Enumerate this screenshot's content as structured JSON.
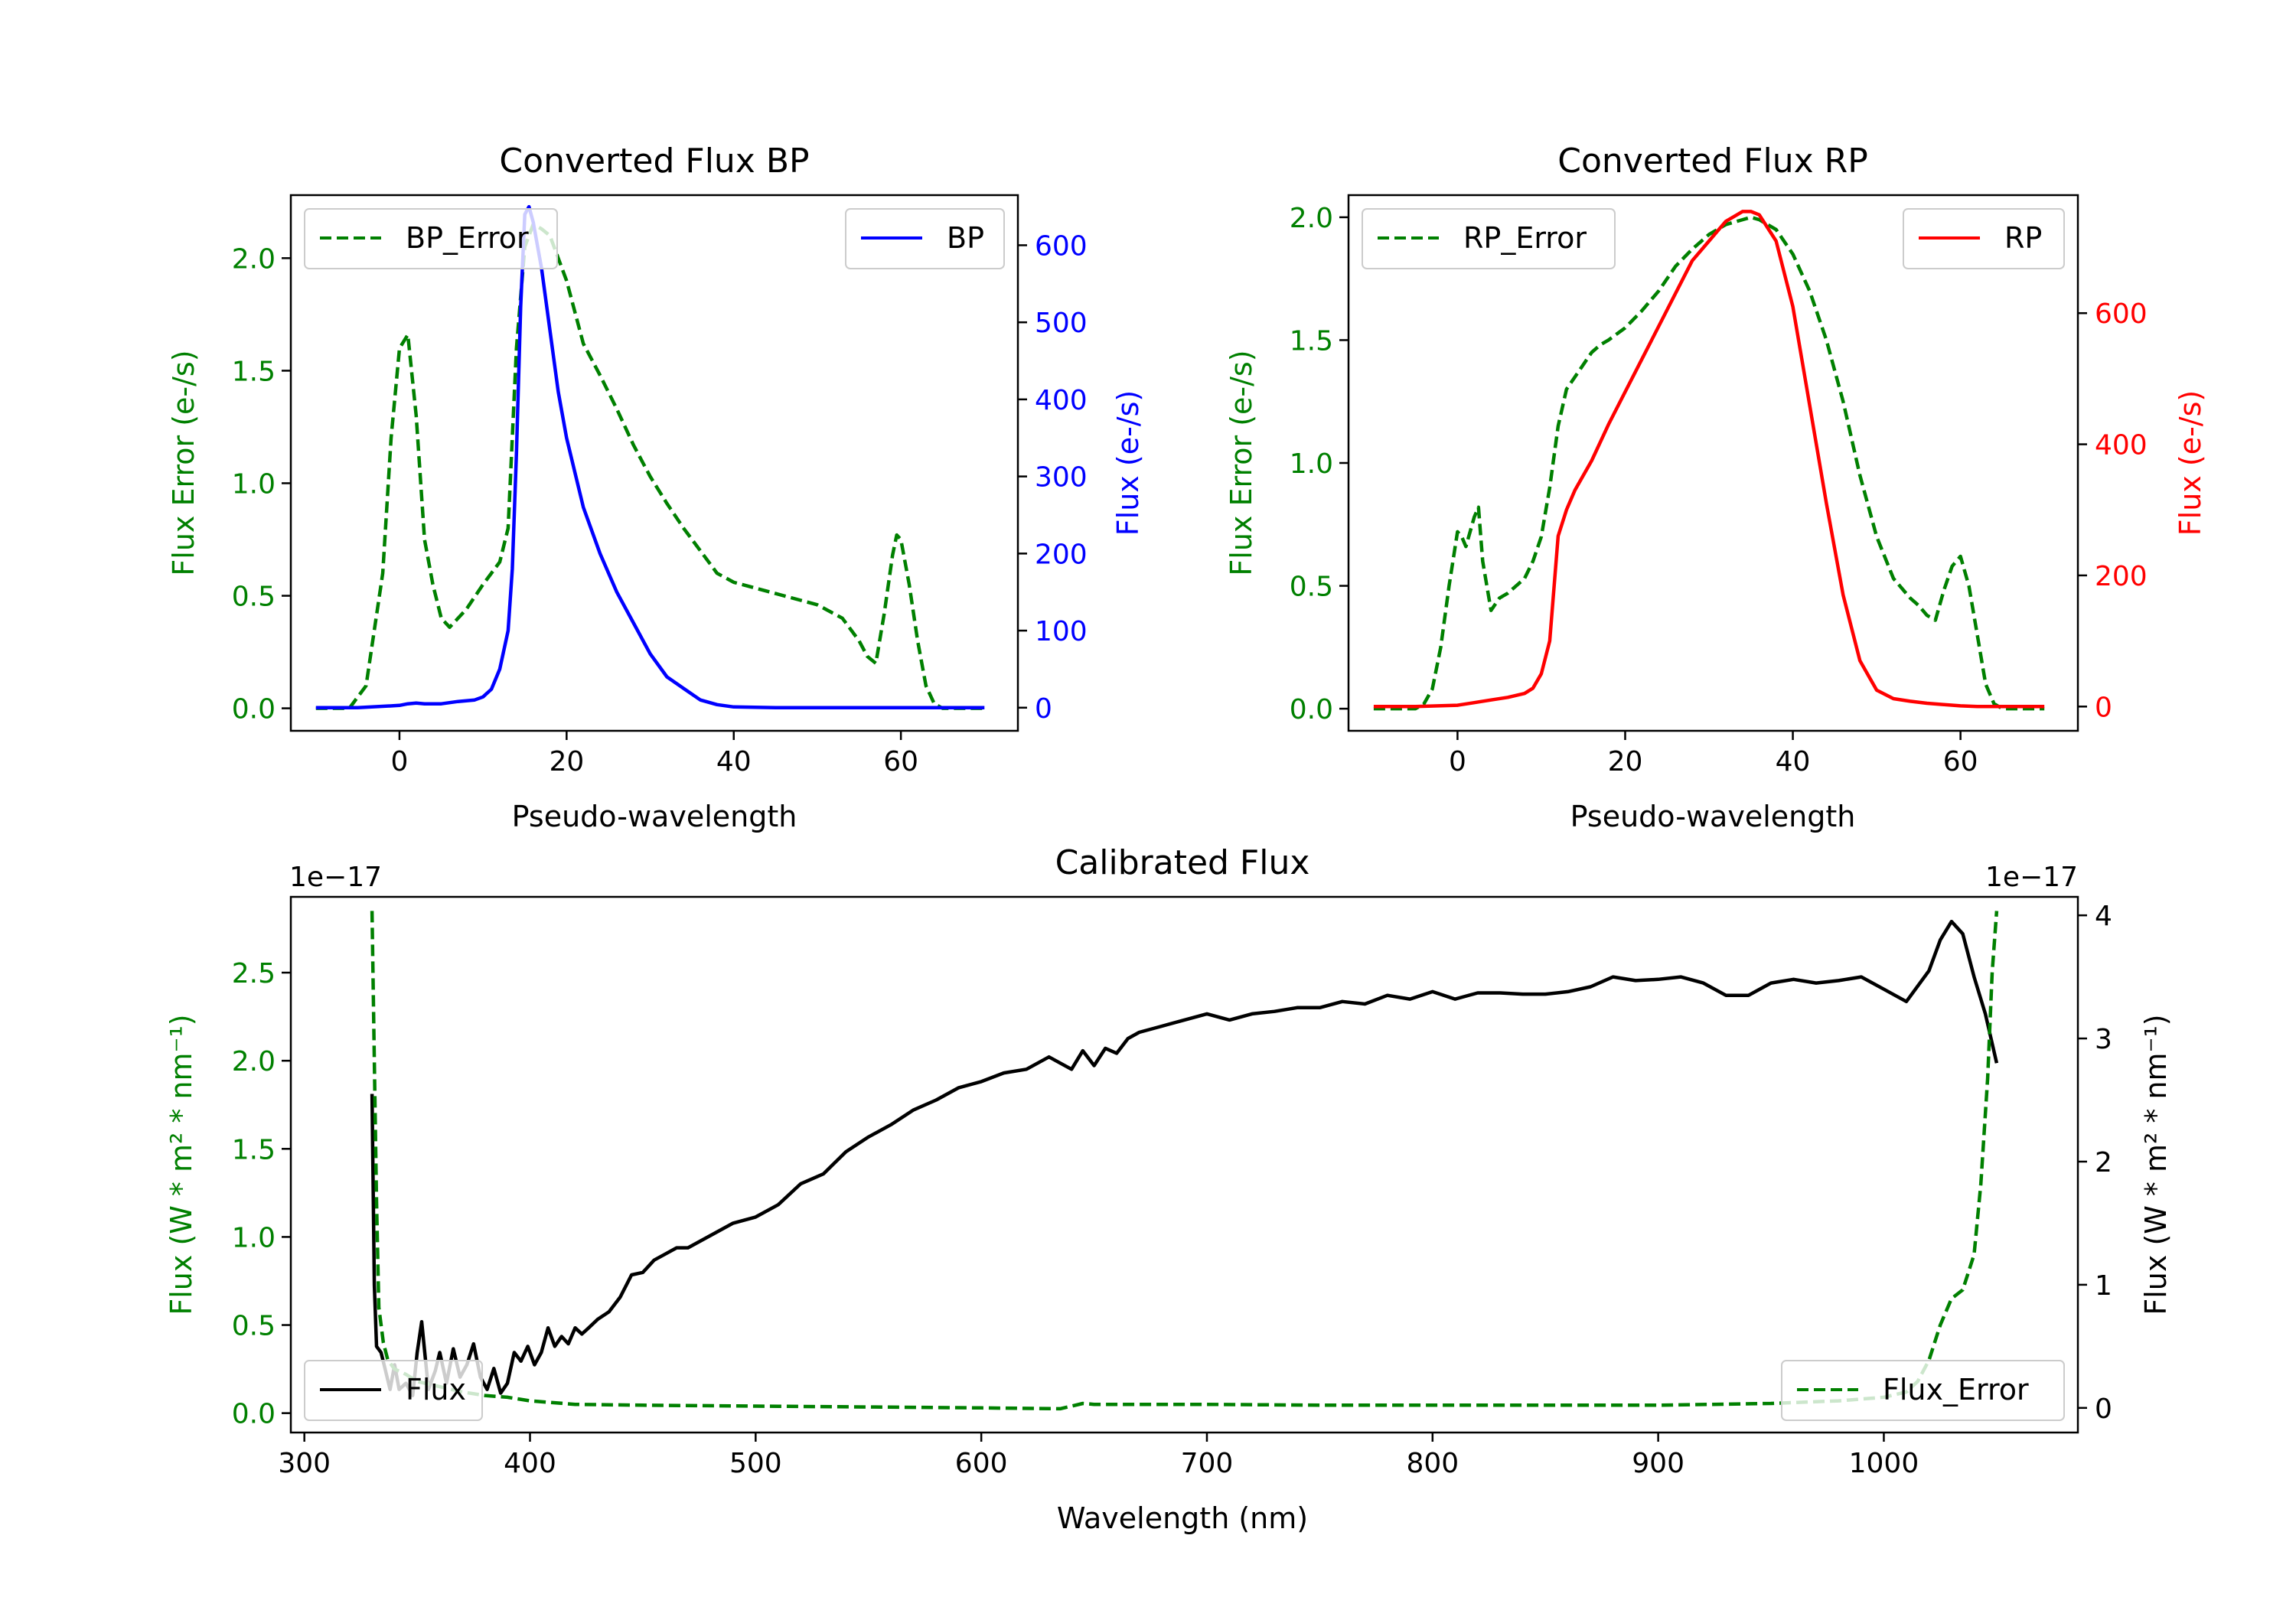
{
  "chart_data": [
    {
      "id": "bp",
      "type": "line",
      "title": "Converted Flux BP",
      "xlabel": "Pseudo-wavelength",
      "xlim": [
        -13,
        74
      ],
      "xticks": [
        0,
        20,
        40,
        60
      ],
      "left_axis": {
        "label": "Flux Error (e-/s)",
        "color": "#008000",
        "lim": [
          -0.1,
          2.28
        ],
        "ticks": [
          0.0,
          0.5,
          1.0,
          1.5,
          2.0
        ],
        "tick_labels": [
          "0.0",
          "0.5",
          "1.0",
          "1.5",
          "2.0"
        ]
      },
      "right_axis": {
        "label": "Flux (e-/s)",
        "color": "#0000ff",
        "lim": [
          -30,
          665
        ],
        "ticks": [
          0,
          100,
          200,
          300,
          400,
          500,
          600
        ],
        "tick_labels": [
          "0",
          "100",
          "200",
          "300",
          "400",
          "500",
          "600"
        ]
      },
      "series": [
        {
          "name": "BP_Error",
          "axis": "left",
          "color": "#008000",
          "style": "dashed",
          "x": [
            -10,
            -6,
            -4,
            -2,
            -1,
            0,
            1,
            2,
            3,
            4,
            5,
            6,
            8,
            10,
            12,
            13,
            14,
            15,
            16,
            17,
            18,
            20,
            22,
            24,
            26,
            28,
            30,
            32,
            34,
            36,
            38,
            40,
            45,
            50,
            53,
            55,
            56,
            57,
            58,
            59,
            59.5,
            60,
            61,
            62,
            63,
            64,
            65,
            66,
            68,
            70
          ],
          "y": [
            0,
            0,
            0.1,
            0.6,
            1.2,
            1.6,
            1.66,
            1.3,
            0.75,
            0.55,
            0.4,
            0.36,
            0.44,
            0.55,
            0.65,
            0.8,
            1.6,
            2.05,
            2.15,
            2.13,
            2.1,
            1.9,
            1.62,
            1.48,
            1.33,
            1.17,
            1.03,
            0.91,
            0.8,
            0.7,
            0.6,
            0.56,
            0.51,
            0.46,
            0.4,
            0.3,
            0.23,
            0.2,
            0.42,
            0.68,
            0.77,
            0.75,
            0.55,
            0.3,
            0.1,
            0.02,
            0,
            0,
            0,
            0
          ]
        },
        {
          "name": "BP",
          "axis": "right",
          "color": "#0000ff",
          "style": "solid",
          "x": [
            -10,
            -5,
            0,
            1,
            2,
            3,
            4,
            5,
            7,
            9,
            10,
            11,
            12,
            13,
            13.5,
            14,
            14.5,
            15,
            15.5,
            16,
            17,
            18,
            19,
            20,
            22,
            24,
            26,
            28,
            30,
            32,
            34,
            36,
            38,
            40,
            45,
            50,
            55,
            60,
            65,
            70
          ],
          "y": [
            0,
            0,
            3,
            5,
            6,
            5,
            5,
            5,
            8,
            10,
            14,
            24,
            50,
            100,
            180,
            330,
            520,
            640,
            650,
            630,
            570,
            490,
            410,
            350,
            260,
            200,
            150,
            110,
            70,
            40,
            25,
            10,
            4,
            1,
            0,
            0,
            0,
            0,
            0,
            0
          ]
        }
      ]
    },
    {
      "id": "rp",
      "type": "line",
      "title": "Converted Flux RP",
      "xlabel": "Pseudo-wavelength",
      "xlim": [
        -13,
        74
      ],
      "xticks": [
        0,
        20,
        40,
        60
      ],
      "left_axis": {
        "label": "Flux Error (e-/s)",
        "color": "#008000",
        "lim": [
          -0.09,
          2.09
        ],
        "ticks": [
          0.0,
          0.5,
          1.0,
          1.5,
          2.0
        ],
        "tick_labels": [
          "0.0",
          "0.5",
          "1.0",
          "1.5",
          "2.0"
        ]
      },
      "right_axis": {
        "label": "Flux (e-/s)",
        "color": "#ff0000",
        "lim": [
          -37,
          780
        ],
        "ticks": [
          0,
          200,
          400,
          600
        ],
        "tick_labels": [
          "0",
          "200",
          "400",
          "600"
        ]
      },
      "series": [
        {
          "name": "RP_Error",
          "axis": "left",
          "color": "#008000",
          "style": "dashed",
          "x": [
            -10,
            -5,
            -4,
            -3,
            -2,
            -1,
            0,
            0.5,
            1,
            2,
            2.5,
            3,
            4,
            5,
            6,
            7,
            8,
            9,
            10,
            11,
            12,
            13,
            14,
            15,
            16,
            17,
            18,
            20,
            22,
            24,
            26,
            28,
            30,
            32,
            34,
            35,
            36,
            38,
            40,
            42,
            44,
            46,
            48,
            50,
            52,
            54,
            55,
            56,
            57,
            58,
            59,
            60,
            61,
            62,
            63,
            64,
            65,
            66,
            68,
            70
          ],
          "y": [
            0,
            0,
            0.02,
            0.08,
            0.25,
            0.5,
            0.72,
            0.7,
            0.66,
            0.78,
            0.82,
            0.6,
            0.4,
            0.45,
            0.47,
            0.5,
            0.53,
            0.6,
            0.7,
            0.9,
            1.15,
            1.3,
            1.35,
            1.4,
            1.45,
            1.48,
            1.5,
            1.55,
            1.62,
            1.7,
            1.8,
            1.87,
            1.93,
            1.97,
            1.99,
            2.0,
            1.99,
            1.95,
            1.85,
            1.7,
            1.5,
            1.25,
            0.95,
            0.7,
            0.53,
            0.45,
            0.42,
            0.38,
            0.36,
            0.48,
            0.58,
            0.62,
            0.5,
            0.3,
            0.1,
            0.02,
            0,
            0,
            0,
            0
          ]
        },
        {
          "name": "RP",
          "axis": "right",
          "color": "#ff0000",
          "style": "solid",
          "x": [
            -10,
            -5,
            0,
            2,
            4,
            6,
            8,
            9,
            10,
            11,
            11.5,
            12,
            13,
            14,
            16,
            18,
            20,
            22,
            24,
            26,
            28,
            30,
            32,
            34,
            35,
            36,
            38,
            40,
            42,
            44,
            46,
            48,
            50,
            52,
            54,
            56,
            58,
            60,
            62,
            65,
            70
          ],
          "y": [
            0,
            0,
            2,
            6,
            10,
            14,
            20,
            28,
            50,
            100,
            180,
            260,
            300,
            330,
            375,
            430,
            480,
            530,
            580,
            630,
            680,
            710,
            740,
            755,
            755,
            750,
            710,
            610,
            460,
            310,
            170,
            70,
            25,
            12,
            8,
            5,
            3,
            1,
            0,
            0,
            0
          ]
        }
      ]
    },
    {
      "id": "cal",
      "type": "line",
      "title": "Calibrated Flux",
      "xlabel": "Wavelength (nm)",
      "xlim": [
        294,
        1086
      ],
      "xticks": [
        300,
        400,
        500,
        600,
        700,
        800,
        900,
        1000
      ],
      "left_axis": {
        "label": "Flux (W * m² * nm⁻¹)",
        "color": "#008000",
        "offset_text": "1e−17",
        "lim": [
          -0.11,
          2.93
        ],
        "ticks": [
          0.0,
          0.5,
          1.0,
          1.5,
          2.0,
          2.5
        ],
        "tick_labels": [
          "0.0",
          "0.5",
          "1.0",
          "1.5",
          "2.0",
          "2.5"
        ]
      },
      "right_axis": {
        "label": "Flux (W * m² * nm⁻¹)",
        "color": "#000000",
        "offset_text": "1e−17",
        "lim": [
          -0.2,
          4.15
        ],
        "ticks": [
          0,
          1,
          2,
          3,
          4
        ],
        "tick_labels": [
          "0",
          "1",
          "2",
          "3",
          "4"
        ]
      },
      "series": [
        {
          "name": "Flux",
          "axis": "right",
          "color": "#000000",
          "style": "solid",
          "x": [
            330,
            331,
            332,
            334,
            336,
            338,
            340,
            342,
            345,
            348,
            350,
            352,
            355,
            358,
            360,
            363,
            366,
            369,
            372,
            375,
            378,
            381,
            384,
            387,
            390,
            393,
            396,
            399,
            402,
            405,
            408,
            411,
            414,
            417,
            420,
            423,
            426,
            430,
            435,
            440,
            445,
            450,
            455,
            460,
            465,
            470,
            480,
            490,
            500,
            510,
            520,
            530,
            540,
            550,
            560,
            570,
            580,
            590,
            600,
            610,
            620,
            630,
            640,
            645,
            650,
            655,
            660,
            665,
            670,
            680,
            690,
            700,
            710,
            720,
            730,
            740,
            750,
            760,
            770,
            780,
            790,
            800,
            810,
            820,
            830,
            840,
            850,
            860,
            870,
            880,
            890,
            900,
            910,
            920,
            930,
            940,
            950,
            960,
            970,
            980,
            990,
            1000,
            1010,
            1020,
            1025,
            1030,
            1035,
            1040,
            1045,
            1050
          ],
          "y": [
            2.55,
            1.0,
            0.5,
            0.45,
            0.3,
            0.15,
            0.35,
            0.15,
            0.2,
            0.1,
            0.45,
            0.7,
            0.15,
            0.3,
            0.45,
            0.2,
            0.48,
            0.25,
            0.35,
            0.52,
            0.25,
            0.15,
            0.32,
            0.12,
            0.2,
            0.45,
            0.38,
            0.5,
            0.35,
            0.45,
            0.65,
            0.5,
            0.58,
            0.52,
            0.65,
            0.6,
            0.65,
            0.72,
            0.78,
            0.9,
            1.08,
            1.1,
            1.2,
            1.25,
            1.3,
            1.3,
            1.4,
            1.5,
            1.55,
            1.65,
            1.82,
            1.9,
            2.08,
            2.2,
            2.3,
            2.42,
            2.5,
            2.6,
            2.65,
            2.72,
            2.75,
            2.85,
            2.75,
            2.9,
            2.78,
            2.92,
            2.88,
            3.0,
            3.05,
            3.1,
            3.15,
            3.2,
            3.15,
            3.2,
            3.22,
            3.25,
            3.25,
            3.3,
            3.28,
            3.35,
            3.32,
            3.38,
            3.32,
            3.37,
            3.37,
            3.36,
            3.36,
            3.38,
            3.42,
            3.5,
            3.47,
            3.48,
            3.5,
            3.45,
            3.35,
            3.35,
            3.45,
            3.48,
            3.45,
            3.47,
            3.5,
            3.4,
            3.3,
            3.55,
            3.8,
            3.95,
            3.85,
            3.5,
            3.2,
            2.8
          ]
        },
        {
          "name": "Flux_Error",
          "axis": "left",
          "color": "#008000",
          "style": "dashed",
          "x": [
            330,
            331,
            332,
            333,
            335,
            337,
            340,
            345,
            350,
            360,
            370,
            380,
            390,
            400,
            420,
            450,
            500,
            550,
            600,
            635,
            640,
            645,
            650,
            700,
            750,
            800,
            850,
            900,
            950,
            980,
            1000,
            1010,
            1015,
            1020,
            1025,
            1030,
            1035,
            1040,
            1043,
            1046,
            1048,
            1050
          ],
          "y": [
            2.85,
            2.0,
            1.2,
            0.6,
            0.4,
            0.3,
            0.25,
            0.22,
            0.18,
            0.15,
            0.12,
            0.1,
            0.09,
            0.07,
            0.05,
            0.045,
            0.04,
            0.035,
            0.03,
            0.025,
            0.04,
            0.055,
            0.05,
            0.05,
            0.045,
            0.045,
            0.045,
            0.045,
            0.055,
            0.07,
            0.09,
            0.12,
            0.18,
            0.3,
            0.5,
            0.65,
            0.7,
            0.9,
            1.3,
            1.9,
            2.5,
            2.85
          ]
        }
      ]
    }
  ]
}
